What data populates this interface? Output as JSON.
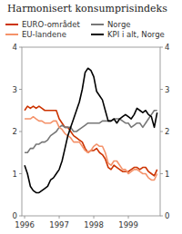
{
  "chart_data": {
    "type": "line",
    "title": "Harmonisert konsumprisindeks",
    "x": [
      1996.0,
      1996.083,
      1996.167,
      1996.25,
      1996.333,
      1996.417,
      1996.5,
      1996.583,
      1996.667,
      1996.75,
      1996.833,
      1996.917,
      1997.0,
      1997.083,
      1997.167,
      1997.25,
      1997.333,
      1997.417,
      1997.5,
      1997.583,
      1997.667,
      1997.75,
      1997.833,
      1997.917,
      1998.0,
      1998.083,
      1998.167,
      1998.25,
      1998.333,
      1998.417,
      1998.5,
      1998.583,
      1998.667,
      1998.75,
      1998.833,
      1998.917,
      1999.0,
      1999.083,
      1999.167,
      1999.25,
      1999.333,
      1999.417,
      1999.5,
      1999.583,
      1999.667,
      1999.75,
      1999.833
    ],
    "series": [
      {
        "name": "EURO-området",
        "color": "#cc3300",
        "values": [
          2.5,
          2.6,
          2.55,
          2.6,
          2.55,
          2.6,
          2.55,
          2.5,
          2.5,
          2.5,
          2.5,
          2.5,
          2.3,
          2.2,
          2.1,
          2.1,
          2.0,
          1.9,
          1.85,
          1.8,
          1.75,
          1.6,
          1.5,
          1.55,
          1.55,
          1.6,
          1.5,
          1.45,
          1.35,
          1.15,
          1.1,
          1.2,
          1.15,
          1.1,
          1.05,
          1.05,
          1.05,
          1.1,
          1.15,
          1.15,
          1.1,
          1.15,
          1.15,
          1.05,
          1.0,
          0.95,
          1.1
        ]
      },
      {
        "name": "Norge",
        "color": "#777777",
        "values": [
          1.5,
          1.5,
          1.6,
          1.6,
          1.7,
          1.7,
          1.75,
          1.75,
          1.8,
          1.9,
          1.95,
          2.0,
          2.1,
          2.15,
          2.1,
          2.1,
          2.1,
          2.0,
          2.0,
          2.05,
          2.1,
          2.15,
          2.2,
          2.2,
          2.2,
          2.2,
          2.2,
          2.25,
          2.25,
          2.25,
          2.25,
          2.3,
          2.3,
          2.3,
          2.25,
          2.2,
          2.2,
          2.1,
          2.15,
          2.2,
          2.2,
          2.1,
          2.2,
          2.3,
          2.4,
          2.5,
          2.5
        ]
      },
      {
        "name": "EU-landene",
        "color": "#f4926a",
        "values": [
          2.3,
          2.3,
          2.3,
          2.35,
          2.3,
          2.25,
          2.25,
          2.2,
          2.2,
          2.2,
          2.25,
          2.25,
          2.1,
          2.05,
          1.95,
          1.9,
          1.85,
          1.75,
          1.75,
          1.75,
          1.65,
          1.55,
          1.5,
          1.55,
          1.65,
          1.7,
          1.65,
          1.65,
          1.5,
          1.25,
          1.2,
          1.3,
          1.3,
          1.2,
          1.1,
          1.1,
          1.0,
          1.05,
          1.1,
          1.1,
          1.05,
          1.0,
          1.0,
          0.9,
          0.85,
          0.85,
          1.0
        ]
      },
      {
        "name": "KPI i alt, Norge",
        "color": "#000000",
        "values": [
          1.2,
          1.0,
          0.7,
          0.6,
          0.55,
          0.55,
          0.6,
          0.65,
          0.7,
          0.85,
          0.9,
          1.0,
          1.1,
          1.3,
          1.6,
          1.9,
          2.1,
          2.3,
          2.5,
          2.7,
          3.0,
          3.4,
          3.5,
          3.45,
          3.3,
          2.95,
          2.85,
          2.75,
          2.5,
          2.25,
          2.25,
          2.3,
          2.2,
          2.3,
          2.35,
          2.4,
          2.35,
          2.3,
          2.4,
          2.55,
          2.5,
          2.45,
          2.5,
          2.4,
          2.35,
          2.1,
          2.45
        ]
      }
    ],
    "xlim": [
      1995.92,
      1999.92
    ],
    "xticks": [
      1996,
      1997,
      1998,
      1999
    ],
    "ylim": [
      0,
      4
    ],
    "yticks": [
      0,
      1,
      2,
      3,
      4
    ],
    "y2lim": [
      0,
      4
    ],
    "y2ticks": [
      0,
      1,
      2,
      3,
      4
    ],
    "legend": "upper right",
    "grid": false
  }
}
